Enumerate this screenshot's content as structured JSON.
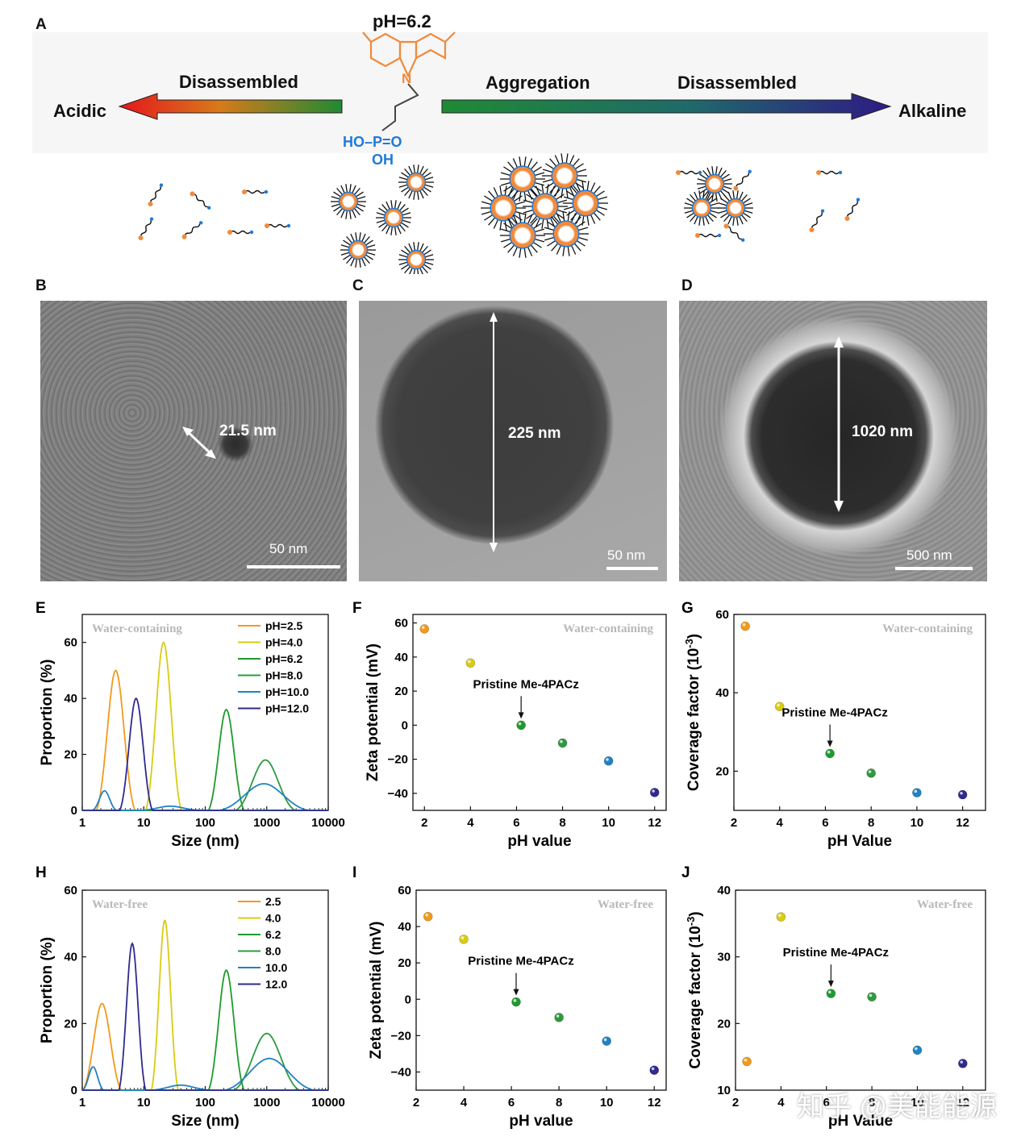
{
  "panel_a": {
    "label": "A",
    "ph_label": "pH=6.2",
    "left_end": "Acidic",
    "right_end": "Alkaline",
    "left_state": "Disassembled",
    "middle_state": "Aggregation",
    "right_state": "Disassembled",
    "n_atom": "N",
    "phosphonic_row1": "HO–P=O",
    "phosphonic_row2": "OH",
    "colors": {
      "acid": "#e4161e",
      "neutral": "#1f8a34",
      "alkaline": "#2f1a86",
      "molecule_core": "#f08a3c",
      "phosphonic": "#1f7ad8"
    }
  },
  "tem": [
    {
      "label": "B",
      "measure": "21.5 nm",
      "scale": "50 nm"
    },
    {
      "label": "C",
      "measure": "225 nm",
      "scale": "50 nm"
    },
    {
      "label": "D",
      "measure": "1020 nm",
      "scale": "500 nm"
    }
  ],
  "series_colors": {
    "2.5": "#f19a1b",
    "4.0": "#d9cc12",
    "6.2": "#1f9a2e",
    "8.0": "#2e9a3e",
    "10.0": "#1f82c4",
    "12.0": "#2f2a8e"
  },
  "watermark": "知乎 @美能能源",
  "chart_data": [
    {
      "panel": "E",
      "type": "line",
      "xscale": "log",
      "xlabel": "Size (nm)",
      "ylabel": "Proportion (%)",
      "xlim": [
        1,
        10000
      ],
      "ylim": [
        0,
        70
      ],
      "xticks": [
        "1",
        "10",
        "100",
        "1000",
        "10000"
      ],
      "yticks": [
        0,
        20,
        40,
        60
      ],
      "note": "Water-containing",
      "series": [
        {
          "name": "pH=2.5",
          "peaks": [
            [
              3.5,
              50,
              0.13
            ]
          ]
        },
        {
          "name": "pH=4.0",
          "peaks": [
            [
              21,
              60,
              0.12
            ]
          ]
        },
        {
          "name": "pH=6.2",
          "peaks": [
            [
              220,
              36,
              0.12
            ]
          ]
        },
        {
          "name": "pH=8.0",
          "peaks": [
            [
              950,
              18,
              0.2
            ]
          ]
        },
        {
          "name": "pH=10.0",
          "peaks": [
            [
              2.3,
              7,
              0.08
            ],
            [
              27,
              1.5,
              0.2
            ],
            [
              900,
              9.5,
              0.3
            ]
          ]
        },
        {
          "name": "pH=12.0",
          "peaks": [
            [
              7.5,
              40,
              0.11
            ]
          ]
        }
      ]
    },
    {
      "panel": "F",
      "type": "scatter",
      "xlabel": "pH value",
      "ylabel": "Zeta potential (mV)",
      "xlim": [
        1.5,
        12.5
      ],
      "ylim": [
        -50,
        65
      ],
      "xticks": [
        2,
        4,
        6,
        8,
        10,
        12
      ],
      "yticks": [
        -40,
        -20,
        0,
        20,
        40,
        60
      ],
      "note": "Water-containing",
      "annotation": "Pristine Me-4PACz",
      "points": [
        [
          2,
          56.5
        ],
        [
          4,
          36.5
        ],
        [
          6.2,
          0
        ],
        [
          8,
          -10.5
        ],
        [
          10,
          -21
        ],
        [
          12,
          -39.5
        ]
      ]
    },
    {
      "panel": "G",
      "type": "scatter",
      "xlabel": "pH Value",
      "ylabel": "Coverage factor (10",
      "ylabel_sup": "-3",
      "ylabel_end": ")",
      "xlim": [
        2,
        13
      ],
      "ylim": [
        10,
        60
      ],
      "xticks": [
        2,
        4,
        6,
        8,
        10,
        12
      ],
      "yticks": [
        20,
        40,
        60
      ],
      "note": "Water-containing",
      "annotation": "Pristine Me-4PACz",
      "points": [
        [
          2.5,
          57
        ],
        [
          4,
          36.5
        ],
        [
          6.2,
          24.5
        ],
        [
          8,
          19.5
        ],
        [
          10,
          14.5
        ],
        [
          12,
          14
        ]
      ]
    },
    {
      "panel": "H",
      "type": "line",
      "xscale": "log",
      "xlabel": "Size (nm)",
      "ylabel": "Proportion (%)",
      "xlim": [
        1,
        10000
      ],
      "ylim": [
        0,
        60
      ],
      "xticks": [
        "1",
        "10",
        "100",
        "1000",
        "10000"
      ],
      "yticks": [
        0,
        20,
        40,
        60
      ],
      "note": "Water-free",
      "series": [
        {
          "name": "2.5",
          "peaks": [
            [
              2.1,
              26,
              0.13
            ]
          ]
        },
        {
          "name": "4.0",
          "peaks": [
            [
              22,
              51,
              0.09
            ]
          ]
        },
        {
          "name": "6.2",
          "peaks": [
            [
              220,
              36,
              0.12
            ]
          ]
        },
        {
          "name": "8.0",
          "peaks": [
            [
              1000,
              17,
              0.22
            ]
          ]
        },
        {
          "name": "10.0",
          "peaks": [
            [
              1.5,
              7,
              0.07
            ],
            [
              40,
              1.5,
              0.2
            ],
            [
              1100,
              9.5,
              0.3
            ]
          ]
        },
        {
          "name": "12.0",
          "peaks": [
            [
              6.5,
              44,
              0.09
            ]
          ]
        }
      ]
    },
    {
      "panel": "I",
      "type": "scatter",
      "xlabel": "pH value",
      "ylabel": "Zeta potential (mV)",
      "xlim": [
        2,
        12.5
      ],
      "ylim": [
        -50,
        60
      ],
      "xticks": [
        2,
        4,
        6,
        8,
        10,
        12
      ],
      "yticks": [
        -40,
        -20,
        0,
        20,
        40,
        60
      ],
      "note": "Water-free",
      "annotation": "Pristine Me-4PACz",
      "points": [
        [
          2.5,
          45.5
        ],
        [
          4,
          33
        ],
        [
          6.2,
          -1.5
        ],
        [
          8,
          -10
        ],
        [
          10,
          -23
        ],
        [
          12,
          -39
        ]
      ]
    },
    {
      "panel": "J",
      "type": "scatter",
      "xlabel": "pH Value",
      "ylabel": "Coverage factor (10",
      "ylabel_sup": "-3",
      "ylabel_end": ")",
      "xlim": [
        2,
        13
      ],
      "ylim": [
        10,
        40
      ],
      "xticks": [
        2,
        4,
        6,
        8,
        10,
        12
      ],
      "yticks": [
        10,
        20,
        30,
        40
      ],
      "note": "Water-free",
      "annotation": "Pristine Me-4PACz",
      "points": [
        [
          2.5,
          14.3
        ],
        [
          4,
          36
        ],
        [
          6.2,
          24.5
        ],
        [
          8,
          24
        ],
        [
          10,
          16
        ],
        [
          12,
          14
        ]
      ]
    }
  ]
}
